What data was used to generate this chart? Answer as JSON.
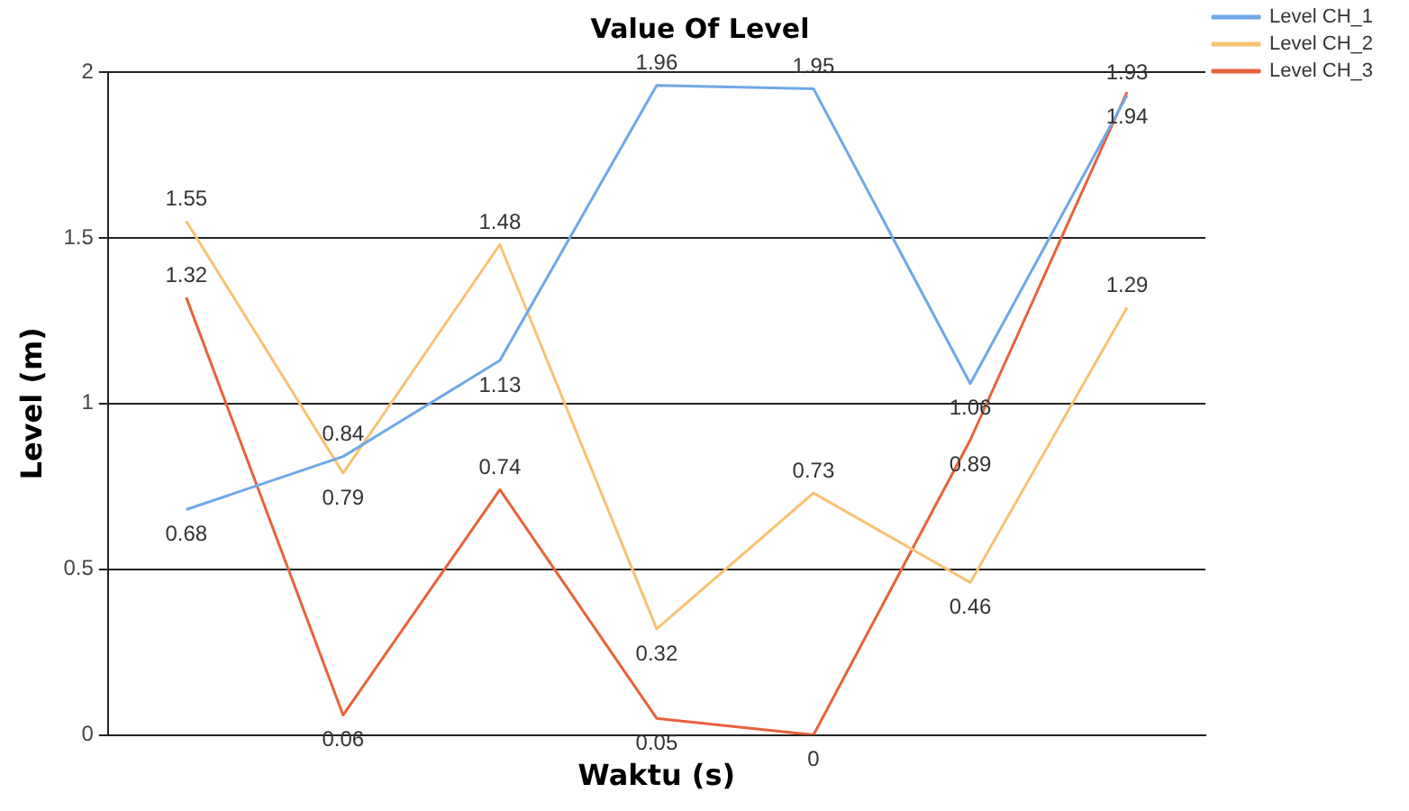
{
  "chart_data": {
    "type": "line",
    "title": "Value Of Level",
    "xlabel": "Waktu (s)",
    "ylabel": "Level (m)",
    "categories": [
      null,
      null,
      null,
      null,
      null,
      null,
      null
    ],
    "series": [
      {
        "name": "Level CH_1",
        "color": "#6fa8e6",
        "values": [
          0.68,
          0.84,
          1.13,
          1.96,
          1.95,
          1.06,
          1.93
        ]
      },
      {
        "name": "Level CH_2",
        "color": "#f8c273",
        "values": [
          1.55,
          0.79,
          1.48,
          0.32,
          0.73,
          0.46,
          1.29
        ]
      },
      {
        "name": "Level CH_3",
        "color": "#e8623c",
        "values": [
          1.32,
          0.06,
          0.74,
          0.05,
          0,
          0.89,
          1.94
        ]
      }
    ],
    "ylim": [
      0,
      2
    ],
    "yticks": [
      0,
      0.5,
      1,
      1.5,
      2
    ],
    "grid": "y",
    "legend": "top right",
    "marker": "none",
    "line_style": "solid",
    "data_labels": true,
    "tick_labels": "y"
  }
}
